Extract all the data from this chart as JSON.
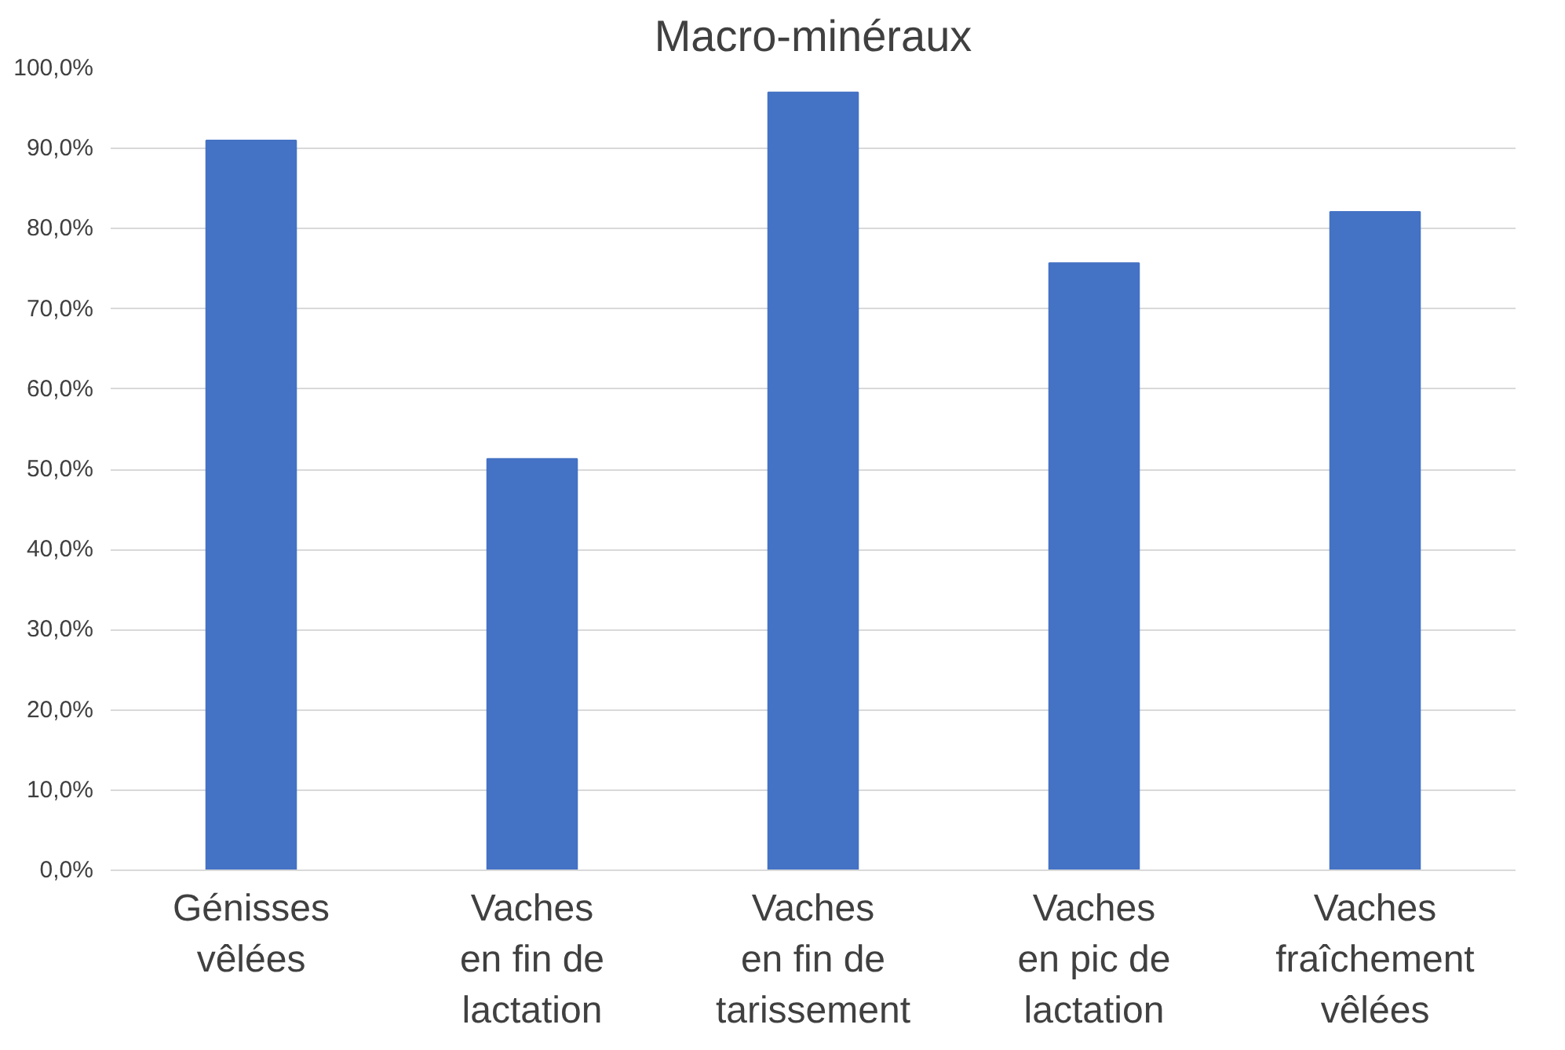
{
  "chart_data": {
    "type": "bar",
    "title": "Macro-minéraux",
    "categories": [
      "Génisses\nvêlées",
      "Vaches\nen fin de\nlactation",
      "Vaches\nen fin de\ntarissement",
      "Vaches\nen pic de\nlactation",
      "Vaches\nfraîchement\nvêlées"
    ],
    "values": [
      91.0,
      51.3,
      97.0,
      75.7,
      82.1
    ],
    "color": "#4472c4",
    "ylim": [
      0,
      100
    ],
    "yticks": [
      {
        "value": 0,
        "label": "0,0%"
      },
      {
        "value": 10,
        "label": "10,0%"
      },
      {
        "value": 20,
        "label": "20,0%"
      },
      {
        "value": 30,
        "label": "30,0%"
      },
      {
        "value": 40,
        "label": "40,0%"
      },
      {
        "value": 50,
        "label": "50,0%"
      },
      {
        "value": 60,
        "label": "60,0%"
      },
      {
        "value": 70,
        "label": "70,0%"
      },
      {
        "value": 80,
        "label": "80,0%"
      },
      {
        "value": 90,
        "label": "90,0%"
      },
      {
        "value": 100,
        "label": "100,0%"
      }
    ],
    "grid": "y"
  }
}
